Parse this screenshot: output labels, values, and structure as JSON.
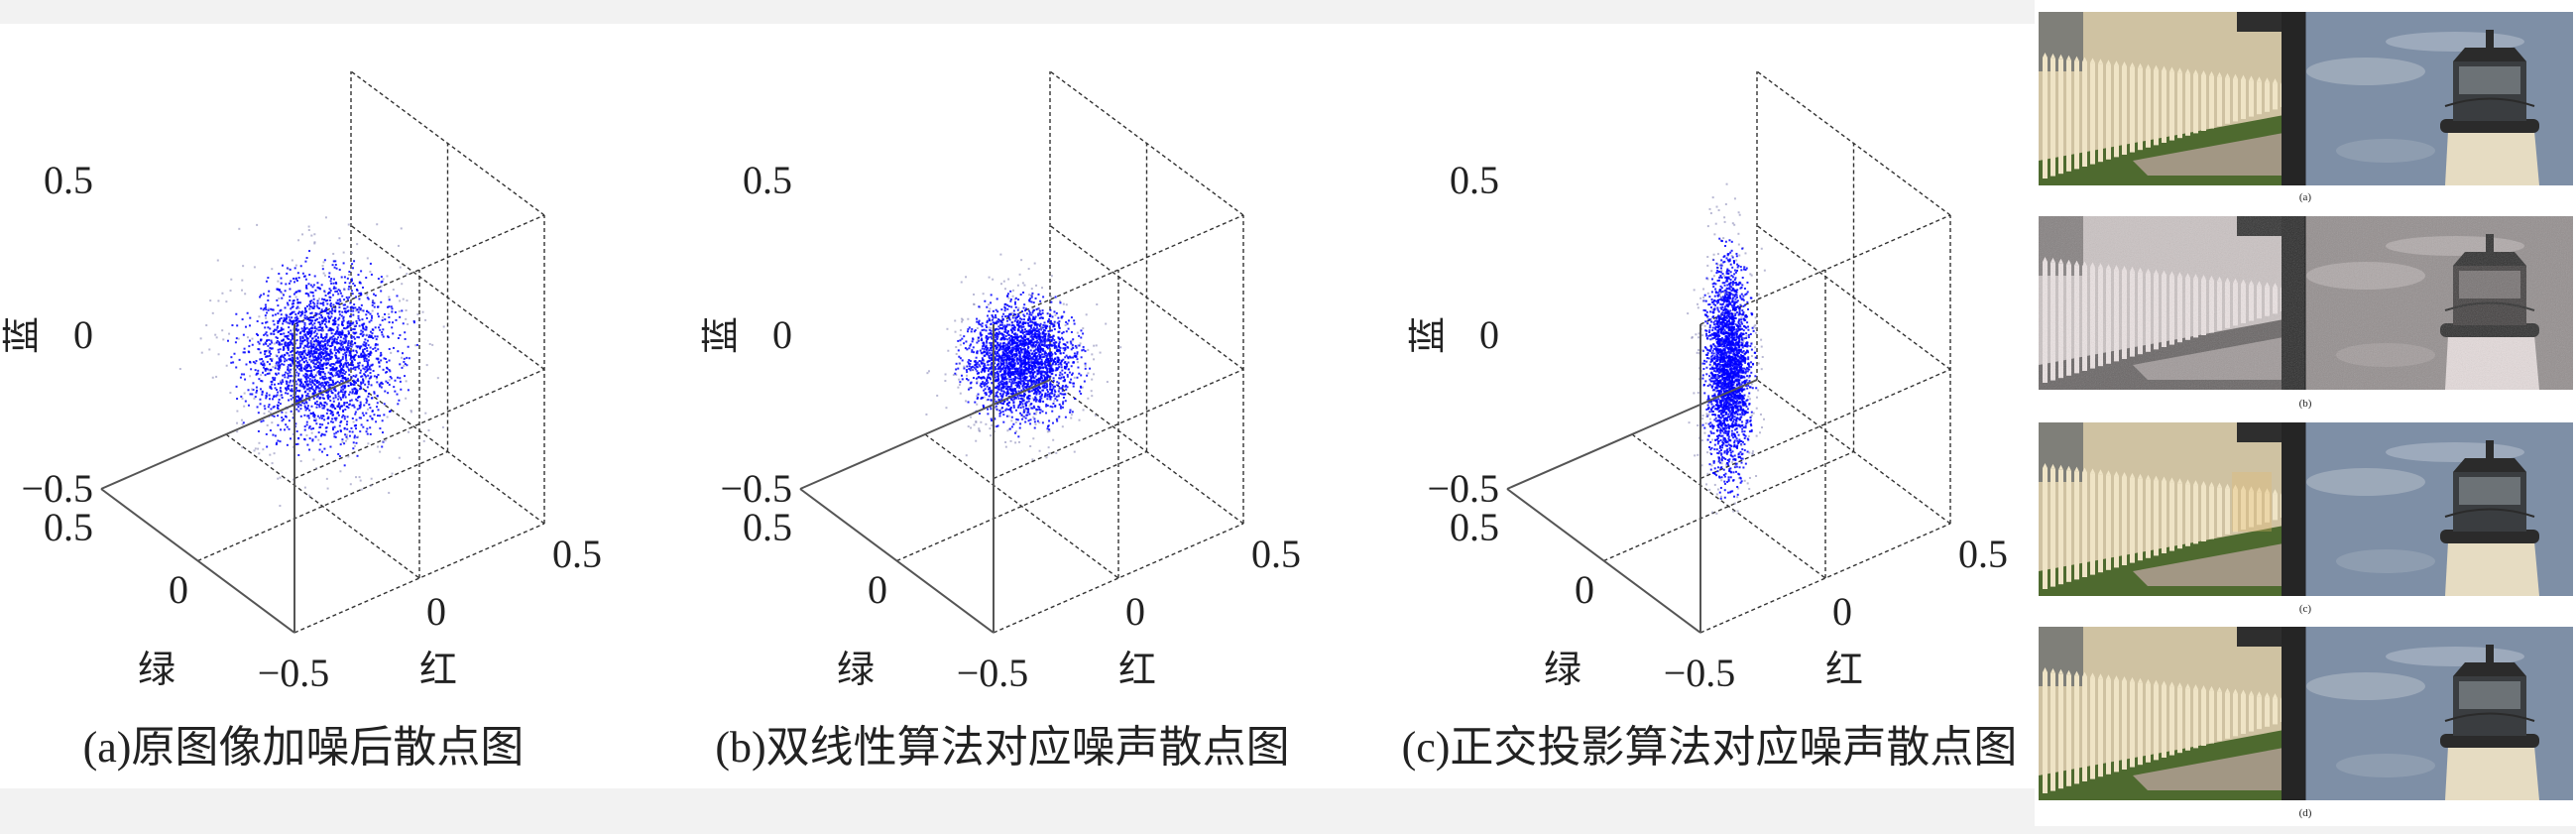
{
  "chart_data": [
    {
      "type": "scatter3d",
      "caption": "(a)原图像加噪后散点图",
      "axes": {
        "x_label": "红",
        "y_label": "绿",
        "z_label": "蓝"
      },
      "xlim": [
        -0.5,
        0.5
      ],
      "ylim": [
        -0.5,
        0.5
      ],
      "zlim": [
        -0.5,
        0.5
      ],
      "x_ticks": [
        "−0.5",
        "0",
        "0.5"
      ],
      "y_ticks": [
        "0.5",
        "0",
        "−0.5"
      ],
      "z_ticks": [
        "0.5",
        "0",
        "−0.5"
      ],
      "grid": true,
      "marker_color": "#0000ff",
      "distribution": {
        "shape": "gaussian",
        "center": [
          0,
          0,
          -0.02
        ],
        "std": [
          0.12,
          0.12,
          0.12
        ]
      }
    },
    {
      "type": "scatter3d",
      "caption": "(b)双线性算法对应噪声散点图",
      "axes": {
        "x_label": "红",
        "y_label": "绿",
        "z_label": "蓝"
      },
      "xlim": [
        -0.5,
        0.5
      ],
      "ylim": [
        -0.5,
        0.5
      ],
      "zlim": [
        -0.5,
        0.5
      ],
      "x_ticks": [
        "−0.5",
        "0",
        "0.5"
      ],
      "y_ticks": [
        "0.5",
        "0",
        "−0.5"
      ],
      "z_ticks": [
        "0.5",
        "0",
        "−0.5"
      ],
      "grid": true,
      "marker_color": "#0000ff",
      "distribution": {
        "shape": "gaussian",
        "center": [
          0,
          0,
          -0.03
        ],
        "std": [
          0.085,
          0.085,
          0.08
        ]
      }
    },
    {
      "type": "scatter3d",
      "caption": "(c)正交投影算法对应噪声散点图",
      "axes": {
        "x_label": "红",
        "y_label": "绿",
        "z_label": "蓝"
      },
      "xlim": [
        -0.5,
        0.5
      ],
      "ylim": [
        -0.5,
        0.5
      ],
      "zlim": [
        -0.5,
        0.5
      ],
      "x_ticks": [
        "−0.5",
        "0",
        "0.5"
      ],
      "y_ticks": [
        "0.5",
        "0",
        "−0.5"
      ],
      "z_ticks": [
        "0.5",
        "0",
        "−0.5"
      ],
      "grid": true,
      "marker_color": "#0000ff",
      "distribution": {
        "shape": "gaussian",
        "center": [
          0,
          0,
          -0.05
        ],
        "std": [
          0.035,
          0.035,
          0.17
        ]
      }
    }
  ],
  "photos": {
    "labels": [
      "(a)",
      "(b)",
      "(c)",
      "(d)"
    ],
    "variants": [
      "original",
      "noisy-grayscale",
      "restored-color-artifacts",
      "restored"
    ]
  },
  "colors": {
    "sky": "#7e8fa6",
    "fence": "#efe4c6",
    "grass": "#4e6a2f",
    "lantern": "#2b2b2b",
    "tower": "#e6dcc2"
  }
}
